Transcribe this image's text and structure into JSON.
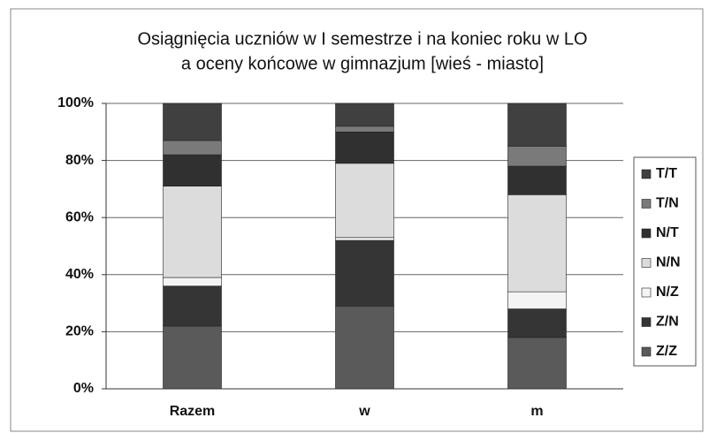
{
  "chart_data": {
    "type": "stacked_bar",
    "title": [
      "Osiągnięcia uczniów w I semestrze i na koniec roku w LO",
      "a oceny końcowe w gimnazjum [wieś - miasto]"
    ],
    "categories": [
      "Razem",
      "w",
      "m"
    ],
    "series": [
      {
        "name": "Z/Z",
        "color": "#5a5a5a",
        "values": [
          22,
          29,
          18
        ]
      },
      {
        "name": "Z/N",
        "color": "#353535",
        "values": [
          14,
          23,
          10
        ]
      },
      {
        "name": "N/Z",
        "color": "#f4f4f4",
        "values": [
          3,
          1,
          6
        ]
      },
      {
        "name": "N/N",
        "color": "#dcdcdc",
        "values": [
          32,
          26,
          34
        ]
      },
      {
        "name": "N/T",
        "color": "#303030",
        "values": [
          11,
          11,
          10
        ]
      },
      {
        "name": "T/N",
        "color": "#7a7a7a",
        "values": [
          5,
          2,
          7
        ]
      },
      {
        "name": "T/T",
        "color": "#404040",
        "values": [
          13,
          8,
          15
        ]
      }
    ],
    "ylim": [
      0,
      100
    ],
    "yticks": [
      {
        "value": 0,
        "label": "0%"
      },
      {
        "value": 20,
        "label": "20%"
      },
      {
        "value": 40,
        "label": "40%"
      },
      {
        "value": 60,
        "label": "60%"
      },
      {
        "value": 80,
        "label": "80%"
      },
      {
        "value": 100,
        "label": "100%"
      }
    ],
    "grid": true,
    "legend": "right"
  }
}
